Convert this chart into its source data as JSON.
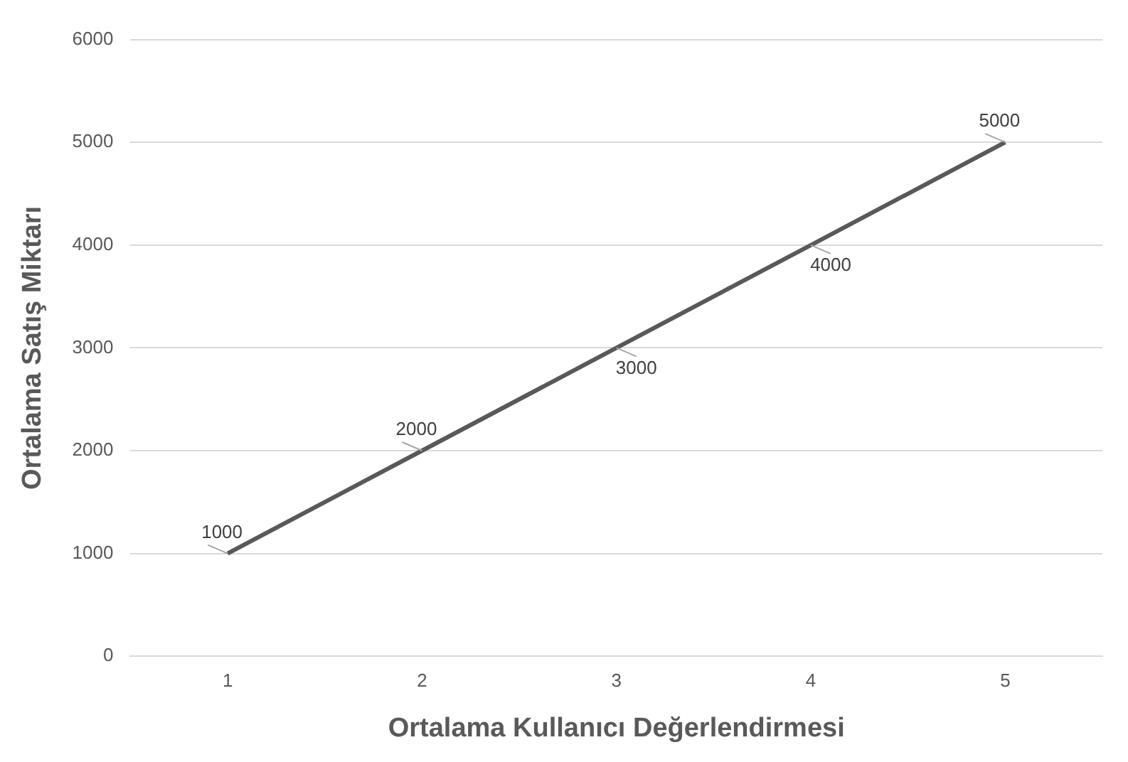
{
  "chart_data": {
    "type": "line",
    "xlabel": "Ortalama Kullanıcı Değerlendirmesi",
    "ylabel": "Ortalama Satış Miktarı",
    "categories": [
      "1",
      "2",
      "3",
      "4",
      "5"
    ],
    "series": [
      {
        "color": "#595959",
        "values": [
          1000,
          2000,
          3000,
          4000,
          5000
        ]
      }
    ],
    "ylim": [
      0,
      6000
    ],
    "yticks": [
      0,
      1000,
      2000,
      3000,
      4000,
      5000,
      6000
    ],
    "grid": "y",
    "legend": false,
    "marker": "none",
    "line_style": "solid",
    "data_labels": true
  }
}
